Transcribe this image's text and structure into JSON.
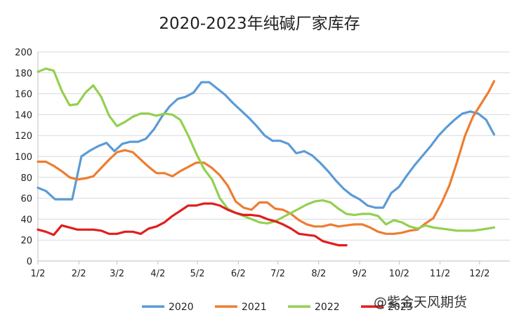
{
  "chart_data": {
    "type": "line",
    "title": "2020-2023年纯碱厂家库存",
    "xlabel": "",
    "ylabel": "",
    "ylim": [
      0,
      200
    ],
    "yticks": [
      0,
      20,
      40,
      60,
      80,
      100,
      120,
      140,
      160,
      180,
      200
    ],
    "x_range_days": [
      0,
      358
    ],
    "x_ticks": [
      {
        "label": "1/2",
        "day": 0
      },
      {
        "label": "2/2",
        "day": 31
      },
      {
        "label": "3/2",
        "day": 60
      },
      {
        "label": "4/2",
        "day": 91
      },
      {
        "label": "5/2",
        "day": 121
      },
      {
        "label": "6/2",
        "day": 152
      },
      {
        "label": "7/2",
        "day": 182
      },
      {
        "label": "8/2",
        "day": 213
      },
      {
        "label": "9/2",
        "day": 244
      },
      {
        "label": "10/2",
        "day": 274
      },
      {
        "label": "11/2",
        "day": 305
      },
      {
        "label": "12/2",
        "day": 335
      }
    ],
    "grid": true,
    "legend": "bottom",
    "series": [
      {
        "name": "2020",
        "color": "#5B9BD5",
        "points": [
          [
            0,
            70
          ],
          [
            6,
            67
          ],
          [
            13,
            59
          ],
          [
            19,
            59
          ],
          [
            26,
            59
          ],
          [
            33,
            100
          ],
          [
            40,
            106
          ],
          [
            46,
            110
          ],
          [
            52,
            113
          ],
          [
            58,
            105
          ],
          [
            64,
            112
          ],
          [
            70,
            114
          ],
          [
            76,
            114
          ],
          [
            82,
            117
          ],
          [
            88,
            126
          ],
          [
            94,
            138
          ],
          [
            100,
            148
          ],
          [
            106,
            155
          ],
          [
            112,
            157
          ],
          [
            118,
            161
          ],
          [
            124,
            171
          ],
          [
            130,
            171
          ],
          [
            136,
            165
          ],
          [
            142,
            159
          ],
          [
            148,
            151
          ],
          [
            154,
            144
          ],
          [
            160,
            137
          ],
          [
            166,
            129
          ],
          [
            172,
            120
          ],
          [
            178,
            115
          ],
          [
            184,
            115
          ],
          [
            190,
            112
          ],
          [
            196,
            103
          ],
          [
            202,
            105
          ],
          [
            208,
            101
          ],
          [
            214,
            94
          ],
          [
            220,
            86
          ],
          [
            226,
            77
          ],
          [
            232,
            69
          ],
          [
            238,
            63
          ],
          [
            244,
            59
          ],
          [
            250,
            53
          ],
          [
            256,
            51
          ],
          [
            262,
            51
          ],
          [
            268,
            65
          ],
          [
            274,
            71
          ],
          [
            280,
            82
          ],
          [
            286,
            92
          ],
          [
            292,
            101
          ],
          [
            298,
            110
          ],
          [
            304,
            120
          ],
          [
            310,
            128
          ],
          [
            316,
            135
          ],
          [
            322,
            141
          ],
          [
            328,
            143
          ],
          [
            334,
            141
          ],
          [
            340,
            135
          ],
          [
            346,
            121
          ]
        ]
      },
      {
        "name": "2021",
        "color": "#ED7D31",
        "points": [
          [
            0,
            95
          ],
          [
            6,
            95
          ],
          [
            12,
            91
          ],
          [
            18,
            86
          ],
          [
            24,
            80
          ],
          [
            30,
            78
          ],
          [
            36,
            79
          ],
          [
            42,
            81
          ],
          [
            48,
            89
          ],
          [
            54,
            97
          ],
          [
            60,
            104
          ],
          [
            66,
            106
          ],
          [
            72,
            104
          ],
          [
            78,
            97
          ],
          [
            84,
            90
          ],
          [
            90,
            84
          ],
          [
            96,
            84
          ],
          [
            102,
            81
          ],
          [
            108,
            86
          ],
          [
            114,
            90
          ],
          [
            120,
            94
          ],
          [
            126,
            94
          ],
          [
            132,
            89
          ],
          [
            138,
            82
          ],
          [
            144,
            72
          ],
          [
            150,
            57
          ],
          [
            156,
            51
          ],
          [
            162,
            49
          ],
          [
            168,
            56
          ],
          [
            174,
            56
          ],
          [
            180,
            50
          ],
          [
            186,
            49
          ],
          [
            192,
            45
          ],
          [
            198,
            39
          ],
          [
            204,
            35
          ],
          [
            210,
            33
          ],
          [
            216,
            33
          ],
          [
            222,
            35
          ],
          [
            228,
            33
          ],
          [
            234,
            34
          ],
          [
            240,
            35
          ],
          [
            246,
            35
          ],
          [
            252,
            32
          ],
          [
            258,
            28
          ],
          [
            264,
            26
          ],
          [
            270,
            26
          ],
          [
            276,
            27
          ],
          [
            282,
            29
          ],
          [
            288,
            30
          ],
          [
            294,
            36
          ],
          [
            300,
            41
          ],
          [
            306,
            55
          ],
          [
            312,
            72
          ],
          [
            318,
            95
          ],
          [
            324,
            120
          ],
          [
            330,
            138
          ],
          [
            336,
            150
          ],
          [
            342,
            162
          ],
          [
            346,
            172
          ]
        ]
      },
      {
        "name": "2022",
        "color": "#92D050",
        "points": [
          [
            0,
            181
          ],
          [
            6,
            184
          ],
          [
            12,
            182
          ],
          [
            18,
            163
          ],
          [
            24,
            149
          ],
          [
            30,
            150
          ],
          [
            36,
            161
          ],
          [
            42,
            168
          ],
          [
            48,
            157
          ],
          [
            54,
            139
          ],
          [
            60,
            129
          ],
          [
            66,
            133
          ],
          [
            72,
            138
          ],
          [
            78,
            141
          ],
          [
            84,
            141
          ],
          [
            90,
            139
          ],
          [
            96,
            141
          ],
          [
            102,
            140
          ],
          [
            108,
            135
          ],
          [
            114,
            120
          ],
          [
            120,
            103
          ],
          [
            126,
            88
          ],
          [
            132,
            78
          ],
          [
            138,
            60
          ],
          [
            144,
            50
          ],
          [
            150,
            46
          ],
          [
            156,
            43
          ],
          [
            162,
            40
          ],
          [
            168,
            37
          ],
          [
            174,
            36
          ],
          [
            180,
            38
          ],
          [
            186,
            42
          ],
          [
            192,
            46
          ],
          [
            198,
            50
          ],
          [
            204,
            54
          ],
          [
            210,
            57
          ],
          [
            216,
            58
          ],
          [
            222,
            56
          ],
          [
            228,
            50
          ],
          [
            234,
            45
          ],
          [
            240,
            44
          ],
          [
            246,
            45
          ],
          [
            252,
            45
          ],
          [
            258,
            43
          ],
          [
            264,
            35
          ],
          [
            270,
            39
          ],
          [
            276,
            37
          ],
          [
            282,
            33
          ],
          [
            288,
            31
          ],
          [
            294,
            34
          ],
          [
            300,
            32
          ],
          [
            306,
            31
          ],
          [
            312,
            30
          ],
          [
            318,
            29
          ],
          [
            324,
            29
          ],
          [
            330,
            29
          ],
          [
            336,
            30
          ],
          [
            346,
            32
          ]
        ]
      },
      {
        "name": "2023",
        "color": "#E01E1E",
        "points": [
          [
            0,
            30
          ],
          [
            6,
            28
          ],
          [
            12,
            25
          ],
          [
            18,
            34
          ],
          [
            24,
            32
          ],
          [
            30,
            30
          ],
          [
            36,
            30
          ],
          [
            42,
            30
          ],
          [
            48,
            29
          ],
          [
            54,
            26
          ],
          [
            60,
            26
          ],
          [
            66,
            28
          ],
          [
            72,
            28
          ],
          [
            78,
            26
          ],
          [
            84,
            31
          ],
          [
            90,
            33
          ],
          [
            96,
            37
          ],
          [
            102,
            43
          ],
          [
            108,
            48
          ],
          [
            114,
            53
          ],
          [
            120,
            53
          ],
          [
            126,
            55
          ],
          [
            132,
            55
          ],
          [
            138,
            53
          ],
          [
            144,
            49
          ],
          [
            150,
            46
          ],
          [
            156,
            44
          ],
          [
            162,
            44
          ],
          [
            168,
            43
          ],
          [
            174,
            40
          ],
          [
            180,
            38
          ],
          [
            186,
            35
          ],
          [
            192,
            31
          ],
          [
            198,
            26
          ],
          [
            204,
            25
          ],
          [
            210,
            24
          ],
          [
            216,
            19
          ],
          [
            222,
            17
          ],
          [
            228,
            15
          ],
          [
            234,
            15
          ]
        ]
      }
    ]
  },
  "watermark": "@紫金天风期货"
}
